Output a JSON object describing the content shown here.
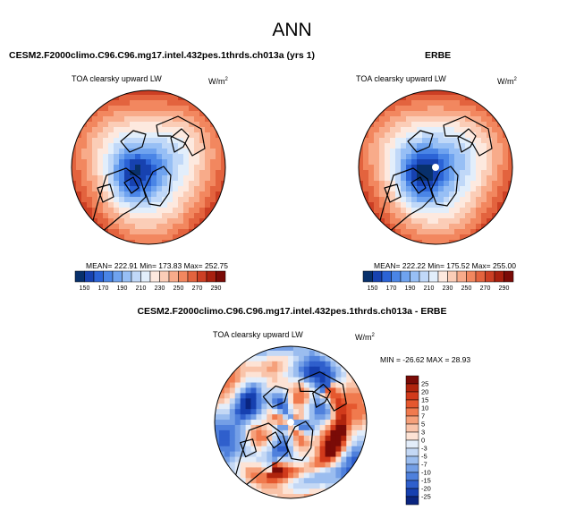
{
  "figure": {
    "title": "ANN",
    "diff_title": "CESM2.F2000climo.C96.C96.mg17.intel.432pes.1thrds.ch013a - ERBE"
  },
  "colors": {
    "cb_abs": [
      "#08306b",
      "#1742b0",
      "#2b63d6",
      "#4a85e6",
      "#6fa3ef",
      "#97bff5",
      "#c0d8f8",
      "#e2eefb",
      "#fde9df",
      "#fbcdb7",
      "#f8ab8a",
      "#f2875f",
      "#e3633e",
      "#cc3f24",
      "#a8200f",
      "#7a0b07"
    ],
    "cb_diff": [
      "#7a0b07",
      "#b0240d",
      "#d13a1b",
      "#e5582f",
      "#f07a4e",
      "#f5a07a",
      "#f9c4aa",
      "#fde3d5",
      "#e3edfa",
      "#c4d8f5",
      "#9bbdef",
      "#749fe6",
      "#4f80dc",
      "#2f5fcc",
      "#1640b0",
      "#0a2580"
    ]
  },
  "chart_data": [
    {
      "type": "heatmap",
      "projection": "north-polar-stereographic",
      "title": "CESM2.F2000climo.C96.C96.mg17.intel.432pes.1thrds.ch013a (yrs 1)",
      "variable": "TOA clearsky upward LW",
      "units": "W/m",
      "units_exp": "2",
      "stats_text": "MEAN= 222.91   Min= 173.83   Max= 252.75",
      "mean": 222.91,
      "min": 173.83,
      "max": 252.75,
      "colorbar_ticks": [
        "150",
        "170",
        "190",
        "210",
        "230",
        "250",
        "270",
        "290"
      ],
      "colorbar_range": [
        150,
        290
      ]
    },
    {
      "type": "heatmap",
      "projection": "north-polar-stereographic",
      "title": "ERBE",
      "variable": "TOA clearsky upward LW",
      "units": "W/m",
      "units_exp": "2",
      "stats_text": "MEAN= 222.22   Min= 175.52   Max= 255.00",
      "mean": 222.22,
      "min": 175.52,
      "max": 255.0,
      "colorbar_ticks": [
        "150",
        "170",
        "190",
        "210",
        "230",
        "250",
        "270",
        "290"
      ],
      "colorbar_range": [
        150,
        290
      ]
    },
    {
      "type": "heatmap",
      "projection": "north-polar-stereographic",
      "title": "CESM2.F2000climo.C96.C96.mg17.intel.432pes.1thrds.ch013a - ERBE",
      "variable": "TOA clearsky upward LW",
      "units": "W/m",
      "units_exp": "2",
      "stats_text": "MIN = -26.62  MAX =  28.93",
      "min": -26.62,
      "max": 28.93,
      "colorbar_ticks": [
        "25",
        "20",
        "15",
        "10",
        "7",
        "5",
        "3",
        "0",
        "-3",
        "-5",
        "-7",
        "-10",
        "-15",
        "-20",
        "-25"
      ]
    }
  ]
}
